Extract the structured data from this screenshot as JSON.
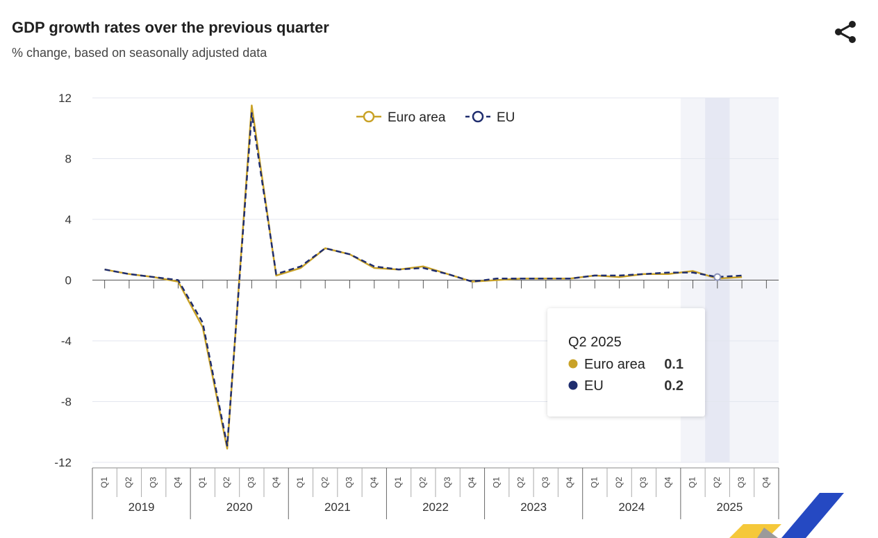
{
  "header": {
    "title": "GDP growth rates over the previous quarter",
    "subtitle": "% change, based on seasonally adjusted data"
  },
  "colors": {
    "euro_area": "#c9a227",
    "eu": "#1f2d6e",
    "grid": "#e3e6ef",
    "highlight_band": "#f3f4f9",
    "highlight_band_active": "#e6e8f3"
  },
  "chart_data": {
    "type": "line",
    "title": "GDP growth rates over the previous quarter",
    "subtitle": "% change, based on seasonally adjusted data",
    "ylim": [
      -12,
      12
    ],
    "yticks": [
      12,
      8,
      4,
      0,
      -4,
      -8,
      -12
    ],
    "ytick_labels": [
      "12",
      "8",
      "4",
      "0",
      "-4",
      "-8",
      "-12"
    ],
    "quarters": [
      "Q1",
      "Q2",
      "Q3",
      "Q4"
    ],
    "years": [
      "2019",
      "2020",
      "2021",
      "2022",
      "2023",
      "2024",
      "2025"
    ],
    "categories": [
      "Q1 2019",
      "Q2 2019",
      "Q3 2019",
      "Q4 2019",
      "Q1 2020",
      "Q2 2020",
      "Q3 2020",
      "Q4 2020",
      "Q1 2021",
      "Q2 2021",
      "Q3 2021",
      "Q4 2021",
      "Q1 2022",
      "Q2 2022",
      "Q3 2022",
      "Q4 2022",
      "Q1 2023",
      "Q2 2023",
      "Q3 2023",
      "Q4 2023",
      "Q1 2024",
      "Q2 2024",
      "Q3 2024",
      "Q4 2024",
      "Q1 2025",
      "Q2 2025",
      "Q3 2025",
      "Q4 2025"
    ],
    "series": [
      {
        "name": "Euro area",
        "values": [
          0.7,
          0.4,
          0.2,
          -0.1,
          -3.1,
          -11.1,
          11.5,
          0.3,
          0.8,
          2.1,
          1.7,
          0.8,
          0.7,
          0.9,
          0.4,
          -0.1,
          0.0,
          0.1,
          0.1,
          0.1,
          0.3,
          0.2,
          0.4,
          0.4,
          0.6,
          0.1,
          0.2,
          null
        ]
      },
      {
        "name": "EU",
        "values": [
          0.7,
          0.4,
          0.2,
          0.0,
          -2.8,
          -10.9,
          11.0,
          0.4,
          0.9,
          2.1,
          1.7,
          0.9,
          0.7,
          0.8,
          0.4,
          -0.1,
          0.1,
          0.1,
          0.1,
          0.1,
          0.3,
          0.3,
          0.4,
          0.5,
          0.5,
          0.2,
          0.3,
          null
        ]
      }
    ],
    "legend": "top-center",
    "highlight_year": "2025",
    "highlight_quarter": "Q2 2025"
  },
  "legend": {
    "items": [
      {
        "label": "Euro area",
        "color": "#c9a227"
      },
      {
        "label": "EU",
        "color": "#1f2d6e"
      }
    ]
  },
  "tooltip": {
    "title": "Q2 2025",
    "rows": [
      {
        "label": "Euro area",
        "value": "0.1",
        "color": "#c9a227"
      },
      {
        "label": "EU",
        "value": "0.2",
        "color": "#1f2d6e"
      }
    ]
  }
}
